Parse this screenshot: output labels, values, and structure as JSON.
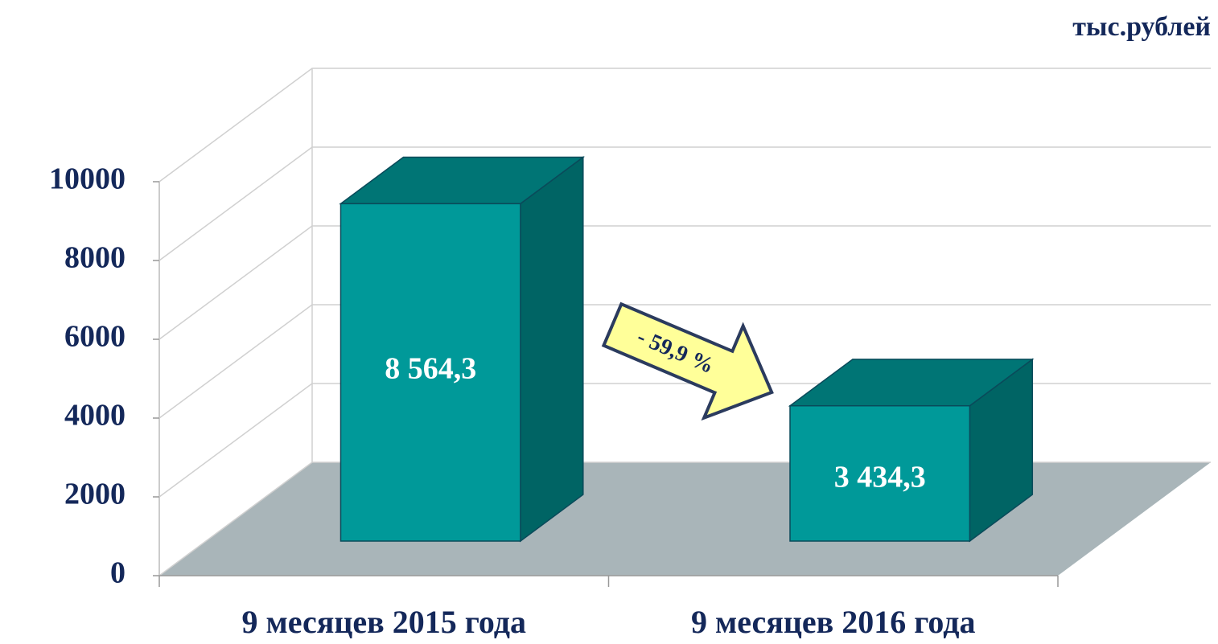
{
  "chart_data": {
    "type": "bar3d",
    "unit_label": "тыс.рублей",
    "categories": [
      "9 месяцев 2015 года",
      "9 месяцев 2016 года"
    ],
    "values": [
      8564.3,
      3434.3
    ],
    "value_labels": [
      "8 564,3",
      "3 434,3"
    ],
    "color": "#009999",
    "ylim": [
      0,
      10000
    ],
    "yticks": [
      0,
      2000,
      4000,
      6000,
      8000,
      10000
    ],
    "grid": true,
    "annotation": "- 59,9 %"
  }
}
